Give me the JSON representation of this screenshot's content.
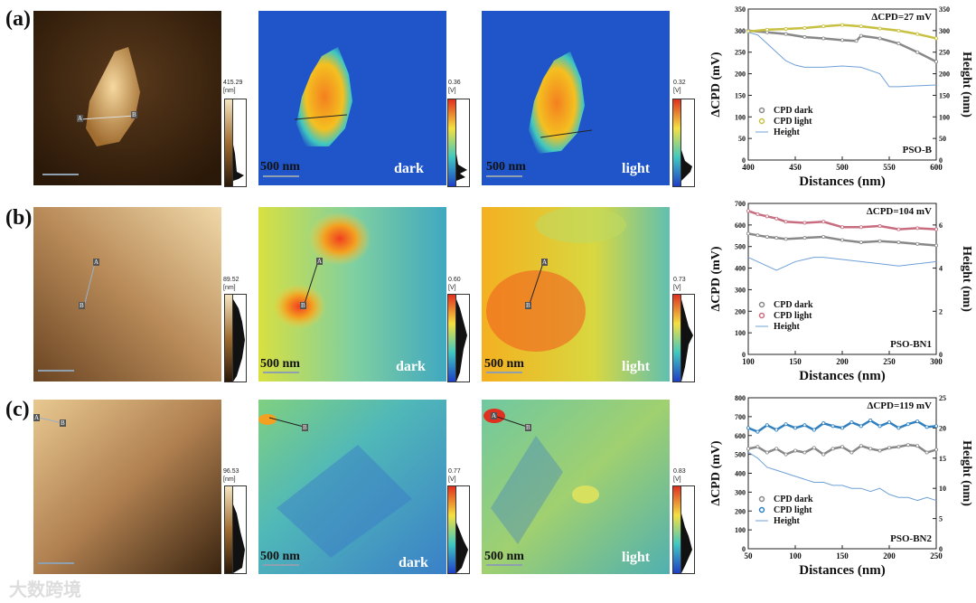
{
  "rows": [
    {
      "label": "(a)",
      "topo_scale": {
        "max": "415.29",
        "unit": "[nm]"
      },
      "dark_scale": {
        "max": "0.36",
        "unit": "[V]"
      },
      "light_scale": {
        "max": "0.32",
        "unit": "[V]"
      },
      "dark_scalebar": "500 nm",
      "light_scalebar": "500 nm",
      "dark_label": "dark",
      "light_label": "light",
      "point_a": "A",
      "point_b": "B"
    },
    {
      "label": "(b)",
      "topo_scale": {
        "max": "89.52",
        "unit": "[nm]"
      },
      "dark_scale": {
        "max": "0.60",
        "unit": "[V]"
      },
      "light_scale": {
        "max": "0.73",
        "unit": "[V]"
      },
      "dark_scalebar": "500 nm",
      "light_scalebar": "500 nm",
      "dark_label": "dark",
      "light_label": "light",
      "point_a": "A",
      "point_b": "B"
    },
    {
      "label": "(c)",
      "topo_scale": {
        "max": "96.53",
        "unit": "[nm]"
      },
      "dark_scale": {
        "max": "0.77",
        "unit": "[V]"
      },
      "light_scale": {
        "max": "0.83",
        "unit": "[V]"
      },
      "dark_scalebar": "500 nm",
      "light_scalebar": "500 nm",
      "dark_label": "dark",
      "light_label": "light",
      "point_a": "A",
      "point_b": "B"
    }
  ],
  "watermark": "大数跨境",
  "chart_data": [
    {
      "type": "line",
      "sample": "PSO-B",
      "annotation": "ΔCPD=27 mV",
      "xlabel": "Distances (nm)",
      "ylabel": "ΔCPD (mV)",
      "y2label": "Height (nm)",
      "xlim": [
        400,
        600
      ],
      "xticks": [
        400,
        450,
        500,
        550,
        600
      ],
      "ylim": [
        0,
        350
      ],
      "yticks": [
        0,
        50,
        100,
        150,
        200,
        250,
        300,
        350
      ],
      "y2lim": [
        0,
        350
      ],
      "y2ticks": [
        0,
        50,
        100,
        150,
        200,
        250,
        300,
        350
      ],
      "legend": [
        "CPD dark",
        "CPD light",
        "Height"
      ],
      "series": [
        {
          "name": "CPD dark",
          "color": "#888888",
          "axis": "left",
          "x": [
            400,
            420,
            440,
            460,
            480,
            500,
            515,
            520,
            540,
            560,
            580,
            600
          ],
          "y": [
            300,
            296,
            292,
            285,
            282,
            278,
            276,
            288,
            282,
            270,
            250,
            228
          ]
        },
        {
          "name": "CPD light",
          "color": "#c8c040",
          "axis": "left",
          "x": [
            400,
            420,
            440,
            460,
            480,
            500,
            520,
            540,
            560,
            580,
            600
          ],
          "y": [
            298,
            302,
            304,
            306,
            310,
            313,
            310,
            305,
            300,
            292,
            282
          ]
        },
        {
          "name": "Height",
          "color": "#6fa0d8",
          "axis": "right",
          "x": [
            400,
            410,
            420,
            430,
            440,
            450,
            460,
            480,
            500,
            520,
            540,
            550,
            560,
            580,
            600
          ],
          "y": [
            296,
            290,
            270,
            250,
            230,
            220,
            215,
            215,
            218,
            215,
            200,
            170,
            170,
            172,
            174
          ]
        }
      ]
    },
    {
      "type": "line",
      "sample": "PSO-BN1",
      "annotation": "ΔCPD=104 mV",
      "xlabel": "Distances (nm)",
      "ylabel": "ΔCPD (mV)",
      "y2label": "Height (nm)",
      "xlim": [
        100,
        300
      ],
      "xticks": [
        100,
        150,
        200,
        250,
        300
      ],
      "ylim": [
        0,
        700
      ],
      "yticks": [
        0,
        100,
        200,
        300,
        400,
        500,
        600,
        700
      ],
      "y2lim": [
        0,
        7
      ],
      "y2ticks": [
        0,
        2,
        4,
        6
      ],
      "legend": [
        "CPD dark",
        "CPD light",
        "Height"
      ],
      "series": [
        {
          "name": "CPD dark",
          "color": "#888888",
          "axis": "left",
          "x": [
            100,
            110,
            120,
            130,
            140,
            160,
            180,
            200,
            220,
            240,
            260,
            280,
            300
          ],
          "y": [
            560,
            552,
            545,
            540,
            535,
            540,
            545,
            530,
            520,
            525,
            520,
            512,
            505
          ]
        },
        {
          "name": "CPD light",
          "color": "#c86c80",
          "axis": "left",
          "x": [
            100,
            110,
            120,
            130,
            140,
            160,
            180,
            200,
            220,
            240,
            260,
            280,
            300
          ],
          "y": [
            665,
            650,
            640,
            630,
            615,
            610,
            615,
            590,
            590,
            595,
            580,
            585,
            580
          ]
        },
        {
          "name": "Height",
          "color": "#6fa0d8",
          "axis": "right",
          "x": [
            100,
            110,
            120,
            130,
            140,
            150,
            160,
            170,
            180,
            200,
            220,
            240,
            260,
            280,
            300
          ],
          "y": [
            4.5,
            4.3,
            4.1,
            3.9,
            4.1,
            4.3,
            4.4,
            4.5,
            4.5,
            4.4,
            4.3,
            4.2,
            4.1,
            4.2,
            4.3
          ]
        }
      ]
    },
    {
      "type": "line",
      "sample": "PSO-BN2",
      "annotation": "ΔCPD=119 mV",
      "xlabel": "Distances (nm)",
      "ylabel": "ΔCPD (mV)",
      "y2label": "Height (nm)",
      "xlim": [
        50,
        250
      ],
      "xticks": [
        50,
        100,
        150,
        200,
        250
      ],
      "ylim": [
        0,
        800
      ],
      "yticks": [
        0,
        100,
        200,
        300,
        400,
        500,
        600,
        700,
        800
      ],
      "y2lim": [
        0,
        25
      ],
      "y2ticks": [
        0,
        5,
        10,
        15,
        20,
        25
      ],
      "legend": [
        "CPD dark",
        "CPD light",
        "Height"
      ],
      "series": [
        {
          "name": "CPD dark",
          "color": "#888888",
          "axis": "left",
          "x": [
            50,
            60,
            70,
            80,
            90,
            100,
            110,
            120,
            130,
            140,
            150,
            160,
            170,
            180,
            190,
            200,
            210,
            220,
            230,
            240,
            250
          ],
          "y": [
            530,
            540,
            510,
            530,
            500,
            520,
            510,
            535,
            500,
            530,
            540,
            510,
            545,
            530,
            520,
            535,
            540,
            550,
            545,
            510,
            525
          ]
        },
        {
          "name": "CPD light",
          "color": "#3080c0",
          "axis": "left",
          "x": [
            50,
            60,
            70,
            80,
            90,
            100,
            110,
            120,
            130,
            140,
            150,
            160,
            170,
            180,
            190,
            200,
            210,
            220,
            230,
            240,
            250
          ],
          "y": [
            640,
            620,
            655,
            630,
            660,
            640,
            655,
            630,
            665,
            650,
            640,
            670,
            650,
            680,
            650,
            670,
            640,
            660,
            675,
            645,
            650
          ]
        },
        {
          "name": "Height",
          "color": "#6fa0d8",
          "axis": "right",
          "x": [
            50,
            60,
            70,
            80,
            90,
            100,
            110,
            120,
            130,
            140,
            150,
            160,
            170,
            180,
            190,
            200,
            210,
            220,
            230,
            240,
            250
          ],
          "y": [
            16,
            15,
            13.5,
            13,
            12.5,
            12,
            11.5,
            11,
            11,
            10.5,
            10.5,
            10,
            10,
            9.5,
            10,
            9,
            8.5,
            8.5,
            8,
            8.5,
            8
          ]
        }
      ]
    }
  ]
}
